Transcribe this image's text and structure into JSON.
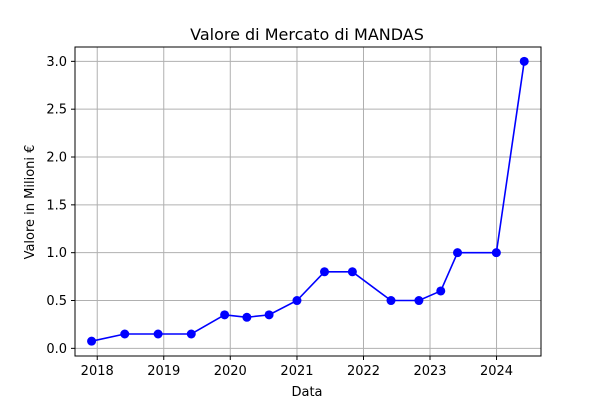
{
  "chart_data": {
    "type": "line",
    "title": "Valore di Mercato di MANDAS",
    "xlabel": "Data",
    "ylabel": "Valore in Milioni €",
    "x_ticks": [
      "2018",
      "2019",
      "2020",
      "2021",
      "2022",
      "2023",
      "2024"
    ],
    "y_ticks": [
      "0.0",
      "0.5",
      "1.0",
      "1.5",
      "2.0",
      "2.5",
      "3.0"
    ],
    "xlim": [
      "2017-09-01",
      "2024-09-01"
    ],
    "ylim": [
      -0.08,
      3.15
    ],
    "grid": true,
    "color": "#0000ff",
    "series": [
      {
        "points": [
          {
            "x": "2017-12-01",
            "y": 0.075
          },
          {
            "x": "2018-06-01",
            "y": 0.15
          },
          {
            "x": "2018-12-01",
            "y": 0.15
          },
          {
            "x": "2019-06-01",
            "y": 0.15
          },
          {
            "x": "2019-12-01",
            "y": 0.35
          },
          {
            "x": "2020-04-01",
            "y": 0.325
          },
          {
            "x": "2020-08-01",
            "y": 0.35
          },
          {
            "x": "2021-01-01",
            "y": 0.5
          },
          {
            "x": "2021-06-01",
            "y": 0.8
          },
          {
            "x": "2021-11-01",
            "y": 0.8
          },
          {
            "x": "2022-06-01",
            "y": 0.5
          },
          {
            "x": "2022-11-01",
            "y": 0.5
          },
          {
            "x": "2023-03-01",
            "y": 0.6
          },
          {
            "x": "2023-06-01",
            "y": 1.0
          },
          {
            "x": "2023-12-31",
            "y": 1.0
          },
          {
            "x": "2024-06-01",
            "y": 3.0
          }
        ]
      }
    ]
  }
}
